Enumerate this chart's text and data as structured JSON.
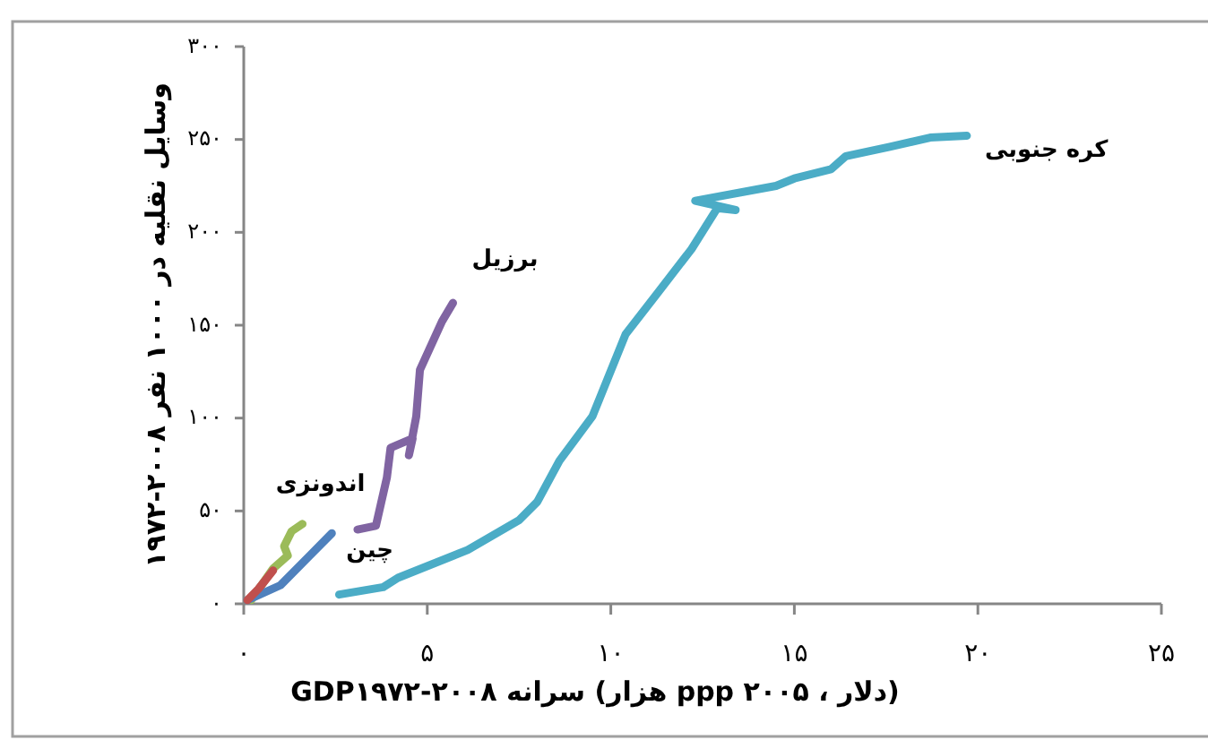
{
  "chart_data": {
    "type": "line",
    "xlabel": "GDPسرانه ۲۰۰۸-۱۹۷۲ (هزار ppp دلار ، ۲۰۰۵)",
    "ylabel": "وسایل نقلیه در ۱۰۰۰ نفر ۲۰۰۸-۱۹۷۲",
    "xlim": [
      0,
      25
    ],
    "xticks": [
      {
        "value": 0,
        "label": "۰"
      },
      {
        "value": 5,
        "label": "۵"
      },
      {
        "value": 10,
        "label": "۱۰"
      },
      {
        "value": 15,
        "label": "۱۵"
      },
      {
        "value": 20,
        "label": "۲۰"
      },
      {
        "value": 25,
        "label": "۲۵"
      }
    ],
    "ylim": [
      0,
      300
    ],
    "yticks": [
      {
        "value": 0,
        "label": "۰"
      },
      {
        "value": 50,
        "label": "۵۰"
      },
      {
        "value": 100,
        "label": "۱۰۰"
      },
      {
        "value": 150,
        "label": "۱۵۰"
      },
      {
        "value": 200,
        "label": "۲۰۰"
      },
      {
        "value": 250,
        "label": "۲۵۰"
      },
      {
        "value": 300,
        "label": "۳۰۰"
      }
    ],
    "grid": false,
    "marker": "none",
    "line_style": "solid",
    "series": [
      {
        "name": "کره جنوبی",
        "color": "#4bacc6",
        "x": [
          2.6,
          3.8,
          4.2,
          6.1,
          7.5,
          8.0,
          8.6,
          9.5,
          10.4,
          11.3,
          12.2,
          12.9,
          13.4,
          12.3,
          14.5,
          15.0,
          16.0,
          16.4,
          17.6,
          18.7,
          19.7
        ],
        "values": [
          5,
          9,
          14,
          29,
          45,
          55,
          77,
          101,
          145,
          168,
          191,
          213,
          212,
          217,
          225,
          229,
          234,
          241,
          246,
          251,
          252
        ]
      },
      {
        "name": "برزیل",
        "color": "#8064a2",
        "x": [
          3.1,
          3.6,
          3.9,
          4.0,
          4.6,
          4.5,
          4.7,
          4.8,
          5.4,
          5.7
        ],
        "values": [
          40,
          42,
          68,
          84,
          89,
          80,
          101,
          126,
          152,
          162
        ]
      },
      {
        "name": "اندونزی",
        "color": "#9bbb59",
        "x": [
          0.2,
          0.8,
          1.2,
          1.1,
          1.3,
          1.6
        ],
        "values": [
          2,
          19,
          26,
          31,
          39,
          43
        ]
      },
      {
        "name": "چین",
        "color": "#4f81bd",
        "x": [
          0.1,
          1.0,
          1.8,
          2.4
        ],
        "values": [
          2,
          10,
          26,
          38
        ]
      },
      {
        "color": "#c0504d",
        "x": [
          0.1,
          0.4,
          0.8
        ],
        "values": [
          2,
          8,
          18
        ]
      }
    ]
  }
}
